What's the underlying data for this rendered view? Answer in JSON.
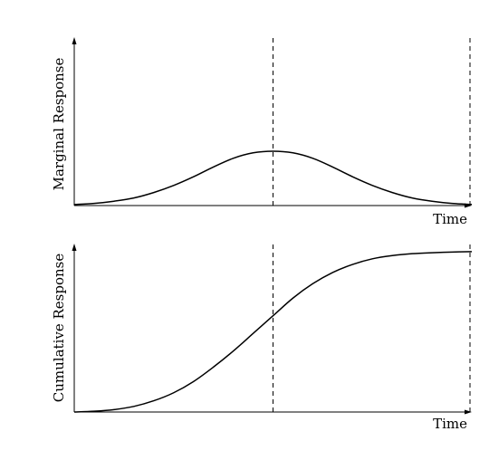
{
  "chart_data": [
    {
      "type": "line",
      "title": "",
      "xlabel": "Time",
      "ylabel": "Marginal Response",
      "x": [
        0,
        0.05,
        0.1,
        0.15,
        0.2,
        0.25,
        0.3,
        0.35,
        0.4,
        0.45,
        0.5,
        0.55,
        0.6,
        0.65,
        0.7,
        0.75,
        0.8,
        0.85,
        0.9,
        0.95,
        1.0
      ],
      "series": [
        {
          "values": [
            0.02,
            0.04,
            0.08,
            0.14,
            0.24,
            0.37,
            0.53,
            0.71,
            0.87,
            0.97,
            1.0,
            0.97,
            0.87,
            0.71,
            0.53,
            0.37,
            0.24,
            0.14,
            0.08,
            0.04,
            0.02
          ]
        }
      ],
      "xlim": [
        0,
        1
      ],
      "ylim": [
        0,
        3.1
      ],
      "guides_x": [
        0.5,
        1.0
      ],
      "grid": false,
      "ticks": false
    },
    {
      "type": "line",
      "title": "",
      "xlabel": "Time",
      "ylabel": "Cumulative Response",
      "x": [
        0,
        0.05,
        0.1,
        0.15,
        0.2,
        0.25,
        0.3,
        0.35,
        0.4,
        0.45,
        0.5,
        0.55,
        0.6,
        0.65,
        0.7,
        0.75,
        0.8,
        0.85,
        0.9,
        0.95,
        1.0
      ],
      "series": [
        {
          "values": [
            0.0,
            0.005,
            0.015,
            0.035,
            0.07,
            0.12,
            0.19,
            0.28,
            0.38,
            0.49,
            0.6,
            0.71,
            0.8,
            0.87,
            0.92,
            0.955,
            0.975,
            0.987,
            0.993,
            0.997,
            1.0
          ]
        }
      ],
      "xlim": [
        0,
        1
      ],
      "ylim": [
        0,
        1.05
      ],
      "guides_x": [
        0.5,
        1.0
      ],
      "grid": false,
      "ticks": false
    }
  ]
}
